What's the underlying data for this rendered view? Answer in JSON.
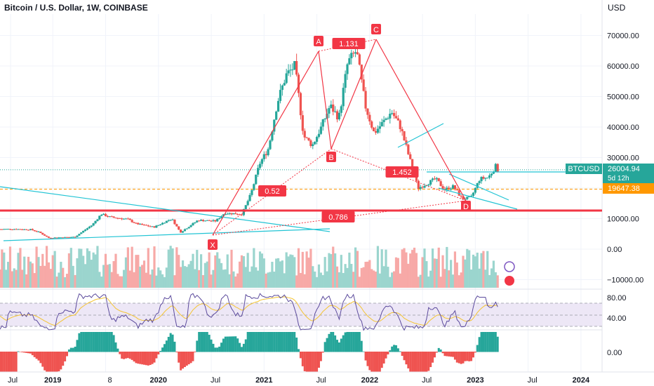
{
  "header": {
    "title": "Bitcoin / U.S. Dollar, 1W, COINBASE",
    "currency": "USD"
  },
  "price_axis": {
    "ticks": [
      "70000.00",
      "60000.00",
      "50000.00",
      "40000.00",
      "30000.00",
      "20000.00",
      "10000.00",
      "0.00",
      "−10000.00"
    ]
  },
  "rsi_axis": {
    "ticks": [
      "80.00",
      "40.00"
    ]
  },
  "hist_axis": {
    "ticks": [
      "0.00"
    ]
  },
  "time_axis": {
    "ticks": [
      "Jul",
      "2019",
      "8",
      "2020",
      "Jul",
      "2021",
      "Jul",
      "2022",
      "Jul",
      "2023",
      "Jul",
      "2024"
    ]
  },
  "labels": {
    "price_symbol": "BTCUSD",
    "price_value": "26004.94",
    "countdown": "5d 12h",
    "level_value": "19647.38"
  },
  "pattern": {
    "points": [
      "X",
      "A",
      "B",
      "C",
      "D"
    ],
    "ratios": [
      "0.52",
      "1.131",
      "1.452",
      "0.786"
    ]
  },
  "colors": {
    "up": "#26a69a",
    "down": "#ef5350",
    "pattern": "#f23645",
    "trend": "#22c4d4",
    "rsi": "#5b4a9c",
    "rsi_ma": "#f4c430",
    "level": "#ff9800"
  },
  "chart_data": {
    "type": "candlestick",
    "title": "Bitcoin / U.S. Dollar, 1W, COINBASE",
    "ylabel": "USD",
    "ylim": [
      -10000,
      75000
    ],
    "x_range": [
      "2018-06",
      "2024-02"
    ],
    "last_price": 26004.94,
    "horizontal_levels": [
      19647.38,
      12000
    ],
    "harmonic_pattern": [
      {
        "point": "X",
        "date": "2020-03",
        "price": 4000
      },
      {
        "point": "A",
        "date": "2021-04",
        "price": 64800
      },
      {
        "point": "B",
        "date": "2021-07",
        "price": 29800
      },
      {
        "point": "C",
        "date": "2021-11",
        "price": 69000
      },
      {
        "point": "D",
        "date": "2022-11",
        "price": 15500
      }
    ],
    "close_path": [
      [
        "2018-06",
        6500
      ],
      [
        "2018-08",
        6600
      ],
      [
        "2018-10",
        6400
      ],
      [
        "2018-11",
        5500
      ],
      [
        "2018-12",
        3700
      ],
      [
        "2019-03",
        4000
      ],
      [
        "2019-05",
        8000
      ],
      [
        "2019-06",
        11500
      ],
      [
        "2019-07",
        10500
      ],
      [
        "2019-09",
        9800
      ],
      [
        "2019-10",
        8300
      ],
      [
        "2019-12",
        7200
      ],
      [
        "2020-02",
        10000
      ],
      [
        "2020-03",
        5500
      ],
      [
        "2020-05",
        9500
      ],
      [
        "2020-07",
        9200
      ],
      [
        "2020-08",
        11800
      ],
      [
        "2020-10",
        11500
      ],
      [
        "2020-11",
        18000
      ],
      [
        "2020-12",
        28000
      ],
      [
        "2021-01",
        33000
      ],
      [
        "2021-02",
        48000
      ],
      [
        "2021-03",
        57000
      ],
      [
        "2021-04",
        60000
      ],
      [
        "2021-05",
        37000
      ],
      [
        "2021-06",
        34000
      ],
      [
        "2021-07",
        40000
      ],
      [
        "2021-08",
        47000
      ],
      [
        "2021-09",
        43000
      ],
      [
        "2021-10",
        61000
      ],
      [
        "2021-11",
        65000
      ],
      [
        "2021-12",
        47000
      ],
      [
        "2022-01",
        38000
      ],
      [
        "2022-03",
        45000
      ],
      [
        "2022-04",
        40000
      ],
      [
        "2022-05",
        30000
      ],
      [
        "2022-06",
        20000
      ],
      [
        "2022-08",
        23000
      ],
      [
        "2022-09",
        19500
      ],
      [
        "2022-10",
        20500
      ],
      [
        "2022-11",
        16500
      ],
      [
        "2022-12",
        16800
      ],
      [
        "2023-01",
        23000
      ],
      [
        "2023-02",
        23500
      ],
      [
        "2023-03",
        28000
      ],
      [
        "2023-03",
        26004.94
      ]
    ]
  }
}
